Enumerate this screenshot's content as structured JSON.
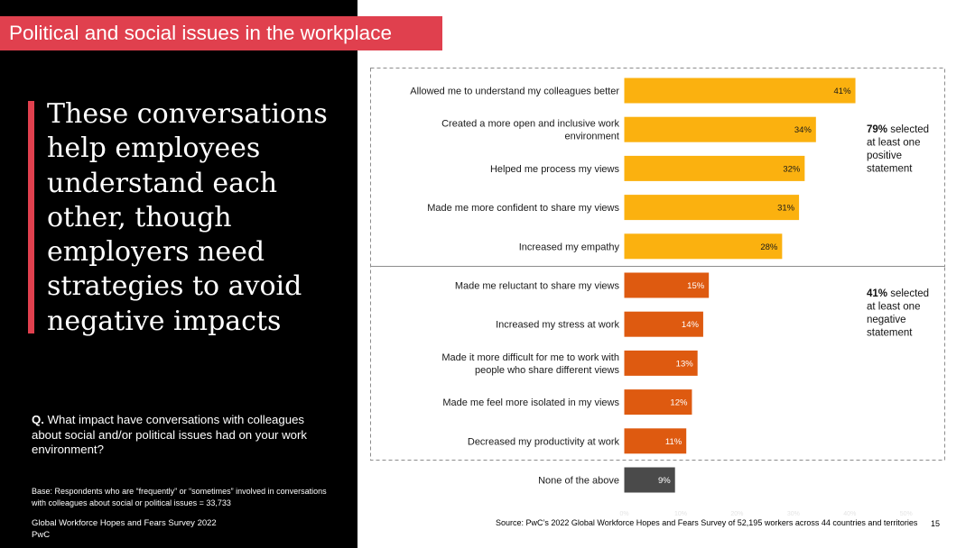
{
  "slide": {
    "section_title": "Political and social issues in the workplace",
    "headline": "These conversations help employees understand each other, though employers need strategies to avoid negative impacts",
    "question_prefix": "Q.",
    "question_text": " What impact have conversations with colleagues about social and/or political issues had on your work environment?",
    "base_note": "Base: Respondents who are “frequently” or “sometimes” involved in conversations with colleagues about social or political issues = 33,733",
    "footer_survey": "Global Workforce Hopes and Fears Survey 2022",
    "footer_org": "PwC",
    "source": "Source: PwC’s 2022 Global Workforce Hopes and Fears Survey of 52,195 workers across 44 countries and territories",
    "page_number": "15"
  },
  "colors": {
    "accent": "#e0404e",
    "positive": "#fbb10f",
    "negative": "#de5a10",
    "neutral": "#4a4a4a"
  },
  "chart_data": {
    "type": "bar",
    "orientation": "horizontal",
    "xlim": [
      0,
      50
    ],
    "x_ticks": [
      "0%",
      "10%",
      "20%",
      "30%",
      "40%",
      "50%"
    ],
    "value_suffix": "%",
    "categories": [
      "Allowed me to understand my colleagues better",
      "Created a more open and inclusive work environment",
      "Helped me process my views",
      "Made me more confident to share my views",
      "Increased my empathy",
      "Made me reluctant to share my views",
      "Increased my stress at work",
      "Made it more difficult for me to work with people who share different views",
      "Made me feel more isolated in my views",
      "Decreased my productivity at work",
      "None of the above"
    ],
    "values": [
      41,
      34,
      32,
      31,
      28,
      15,
      14,
      13,
      12,
      11,
      9
    ],
    "groups": [
      "positive",
      "positive",
      "positive",
      "positive",
      "positive",
      "negative",
      "negative",
      "negative",
      "negative",
      "negative",
      "neutral"
    ],
    "annotations": [
      {
        "bold": "79%",
        "text": " selected at least one positive statement"
      },
      {
        "bold": "41%",
        "text": " selected at least one negative statement"
      }
    ]
  }
}
